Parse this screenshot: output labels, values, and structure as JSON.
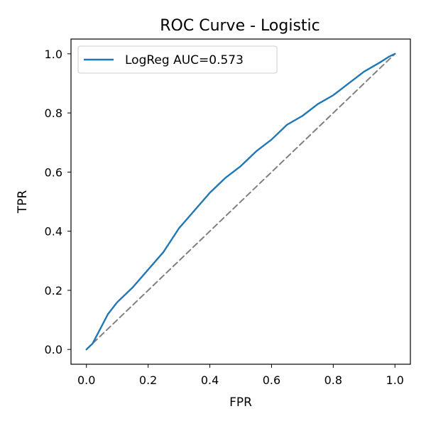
{
  "chart_data": {
    "type": "line",
    "title": "ROC Curve - Logistic",
    "xlabel": "FPR",
    "ylabel": "TPR",
    "xlim": [
      -0.05,
      1.05
    ],
    "ylim": [
      -0.05,
      1.05
    ],
    "xticks": [
      0.0,
      0.2,
      0.4,
      0.6,
      0.8,
      1.0
    ],
    "yticks": [
      0.0,
      0.2,
      0.4,
      0.6,
      0.8,
      1.0
    ],
    "xtick_labels": [
      "0.0",
      "0.2",
      "0.4",
      "0.6",
      "0.8",
      "1.0"
    ],
    "ytick_labels": [
      "0.0",
      "0.2",
      "0.4",
      "0.6",
      "0.8",
      "1.0"
    ],
    "grid": false,
    "legend_position": "top-left",
    "series": [
      {
        "name": "LogReg AUC=0.573",
        "color": "#1f77b4",
        "style": "solid",
        "x": [
          0.0,
          0.01,
          0.02,
          0.03,
          0.05,
          0.07,
          0.1,
          0.15,
          0.2,
          0.25,
          0.3,
          0.35,
          0.4,
          0.45,
          0.5,
          0.55,
          0.6,
          0.65,
          0.7,
          0.75,
          0.8,
          0.85,
          0.9,
          0.95,
          0.98,
          1.0
        ],
        "y": [
          0.0,
          0.01,
          0.02,
          0.04,
          0.08,
          0.12,
          0.16,
          0.21,
          0.27,
          0.33,
          0.41,
          0.47,
          0.53,
          0.58,
          0.62,
          0.67,
          0.71,
          0.76,
          0.79,
          0.83,
          0.86,
          0.9,
          0.94,
          0.97,
          0.99,
          1.0
        ]
      },
      {
        "name": "",
        "color": "#808080",
        "style": "dashed",
        "x": [
          0.0,
          1.0
        ],
        "y": [
          0.0,
          1.0
        ]
      }
    ]
  }
}
